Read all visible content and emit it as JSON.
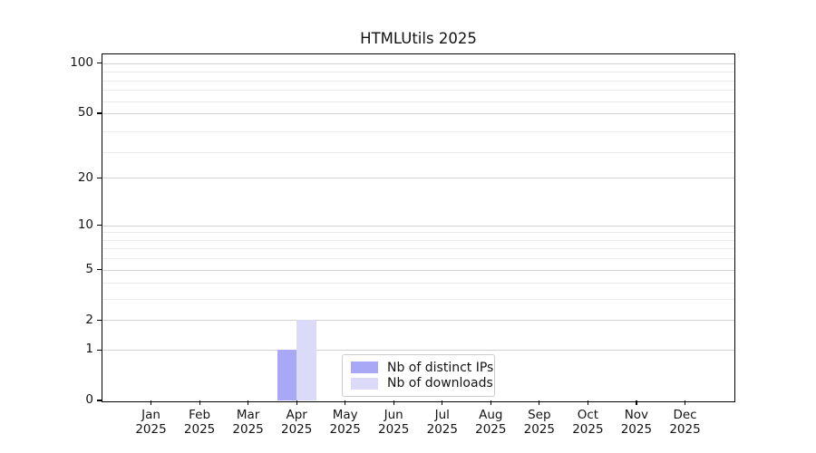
{
  "title": "HTMLUtils 2025",
  "chart_data": {
    "type": "bar",
    "title": "HTMLUtils 2025",
    "categories": [
      "Jan",
      "Feb",
      "Mar",
      "Apr",
      "May",
      "Jun",
      "Jul",
      "Aug",
      "Sep",
      "Oct",
      "Nov",
      "Dec"
    ],
    "x_tick_year": "2025",
    "series": [
      {
        "name": "Nb of distinct IPs",
        "color": "#a8a8f7",
        "values": [
          0,
          0,
          0,
          1,
          0,
          0,
          0,
          0,
          0,
          0,
          0,
          0
        ]
      },
      {
        "name": "Nb of downloads",
        "color": "#dbdbf9",
        "values": [
          0,
          0,
          0,
          2,
          0,
          0,
          0,
          0,
          0,
          0,
          0,
          0
        ]
      }
    ],
    "xlabel": "",
    "ylabel": "",
    "y_scale": "log(value+1)",
    "ylim": [
      0,
      113
    ],
    "y_major_ticks": [
      0,
      1,
      2,
      5,
      10,
      20,
      50,
      100
    ],
    "y_minor_ticks": [
      3,
      4,
      6,
      7,
      8,
      9,
      29,
      39,
      59,
      69,
      79,
      89
    ],
    "grid": "horizontal",
    "legend_position": "lower center inside plot"
  },
  "legend": {
    "items": [
      {
        "label": "Nb of distinct IPs",
        "color": "#a8a8f7"
      },
      {
        "label": "Nb of downloads",
        "color": "#dbdbf9"
      }
    ]
  },
  "colors": {
    "grid_major": "#d0d0d0",
    "grid_minor": "#ebebeb",
    "spine": "#000000",
    "text": "#141414"
  }
}
